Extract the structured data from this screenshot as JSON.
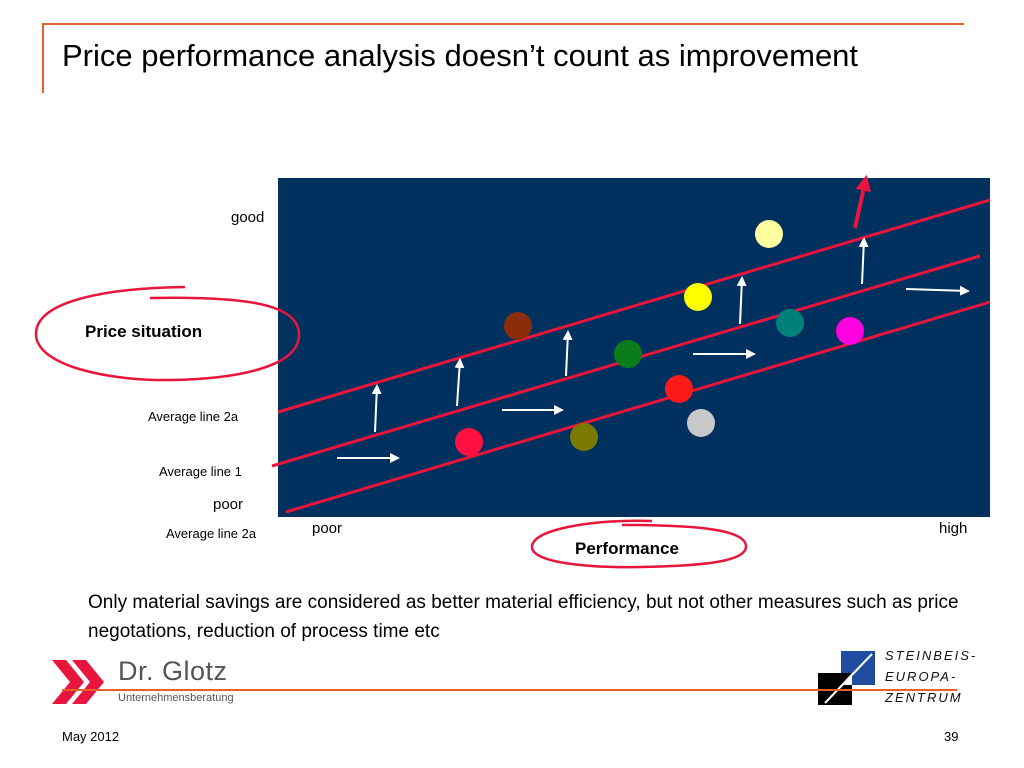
{
  "slide": {
    "title": "Price performance analysis doesn’t count as improvement",
    "note": "Only material savings are considered as better material efficiency, but not other measures such as price negotations, reduction of process time etc",
    "footer": {
      "date": "May 2012",
      "page": "39"
    }
  },
  "diagram": {
    "y_axis": {
      "label": "Price situation",
      "top": "good",
      "bottom": "poor"
    },
    "x_axis": {
      "label": "Performance",
      "left": "poor",
      "right": "high"
    },
    "lines": {
      "upper": "Average line 2a",
      "middle": "Average line 1",
      "lower": "Average line 2a"
    },
    "colors": {
      "background": "#00305e",
      "lines": "#e8163c",
      "arrows": "#ffffff",
      "highlight_arrow": "#e8163c",
      "dots": [
        "#ff1040",
        "#7a7a00",
        "#ff1a1a",
        "#c8c8c8",
        "#0a7d1a",
        "#ffff00",
        "#8b2d0a",
        "#ffffa0",
        "#00807a",
        "#ff00e0"
      ]
    }
  },
  "logos": {
    "left": {
      "name": "Dr. Glotz",
      "sub": "Unternehmensberatung"
    },
    "right": {
      "lines": [
        "STEINBEIS-",
        "EUROPA-",
        "ZENTRUM"
      ]
    }
  }
}
